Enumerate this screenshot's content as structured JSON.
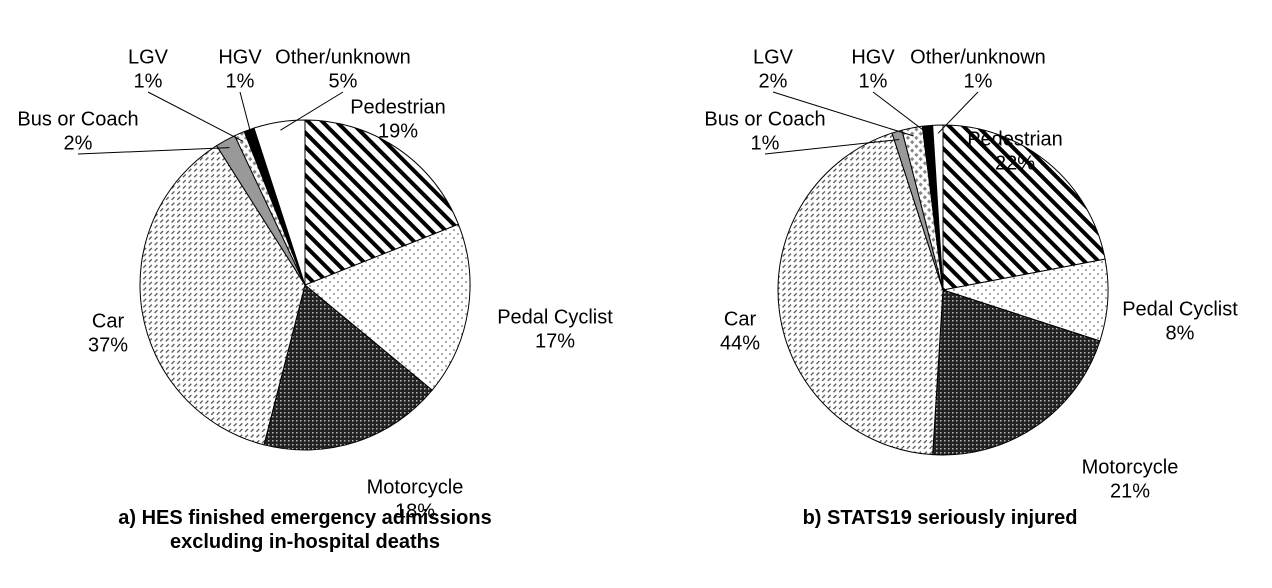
{
  "chart_data": [
    {
      "type": "pie",
      "title": "a) HES finished emergency admissions excluding in-hospital deaths",
      "categories": [
        "Pedestrian",
        "Pedal Cyclist",
        "Motorcycle",
        "Car",
        "Bus or Coach",
        "LGV",
        "HGV",
        "Other/unknown"
      ],
      "values": [
        19,
        17,
        18,
        37,
        2,
        1,
        1,
        5
      ],
      "value_labels": [
        "19%",
        "17%",
        "18%",
        "37%",
        "2%",
        "1%",
        "1%",
        "5%"
      ]
    },
    {
      "type": "pie",
      "title": "b) STATS19 seriously injured",
      "categories": [
        "Pedestrian",
        "Pedal Cyclist",
        "Motorcycle",
        "Car",
        "Bus or Coach",
        "LGV",
        "HGV",
        "Other/unknown"
      ],
      "values": [
        22,
        8,
        21,
        44,
        1,
        2,
        1,
        1
      ],
      "value_labels": [
        "22%",
        "8%",
        "21%",
        "44%",
        "1%",
        "2%",
        "1%",
        "1%"
      ]
    }
  ]
}
